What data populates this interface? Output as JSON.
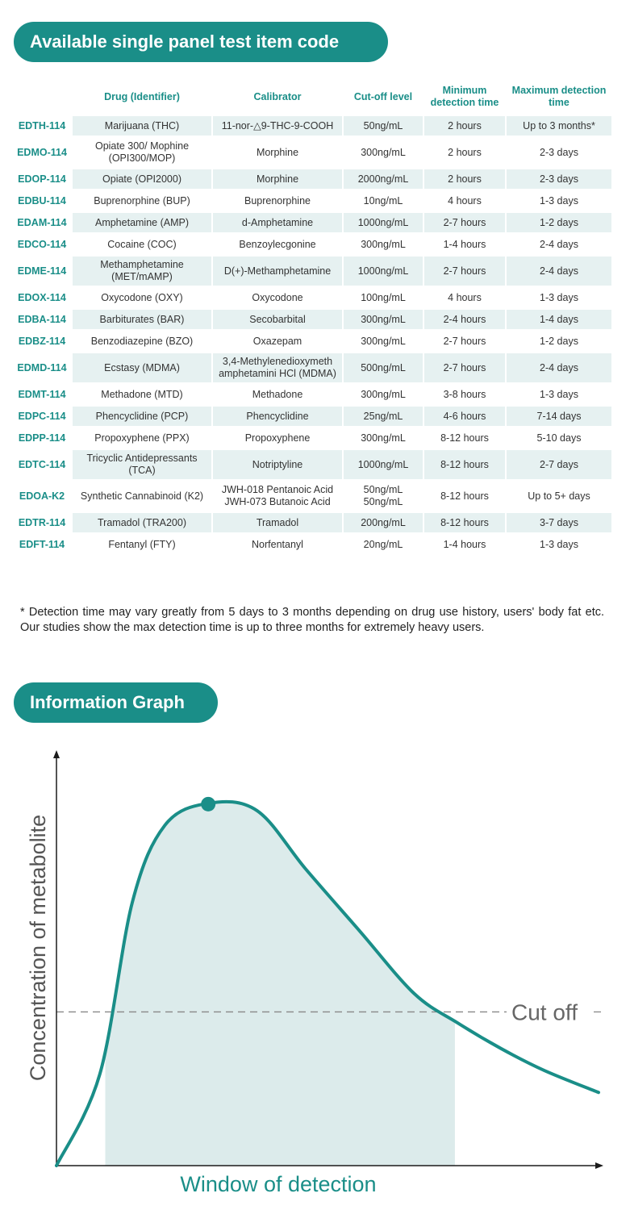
{
  "section1": {
    "title": "Available single panel test item code"
  },
  "table": {
    "headers": [
      "",
      "Drug (Identifier)",
      "Calibrator",
      "Cut-off level",
      "Minimum detection time",
      "Maximum detection time"
    ],
    "rows": [
      {
        "code": "EDTH-114",
        "drug": "Marijuana (THC)",
        "calibrator": "11-nor-△9-THC-9-COOH",
        "cutoff": "50ng/mL",
        "min": "2 hours",
        "max": "Up to 3 months*"
      },
      {
        "code": "EDMO-114",
        "drug": "Opiate 300/ Mophine (OPI300/MOP)",
        "calibrator": "Morphine",
        "cutoff": "300ng/mL",
        "min": "2 hours",
        "max": "2-3 days"
      },
      {
        "code": "EDOP-114",
        "drug": "Opiate (OPI2000)",
        "calibrator": "Morphine",
        "cutoff": "2000ng/mL",
        "min": "2 hours",
        "max": "2-3 days"
      },
      {
        "code": "EDBU-114",
        "drug": "Buprenorphine (BUP)",
        "calibrator": "Buprenorphine",
        "cutoff": "10ng/mL",
        "min": "4 hours",
        "max": "1-3 days"
      },
      {
        "code": "EDAM-114",
        "drug": "Amphetamine (AMP)",
        "calibrator": "d-Amphetamine",
        "cutoff": "1000ng/mL",
        "min": "2-7 hours",
        "max": "1-2 days"
      },
      {
        "code": "EDCO-114",
        "drug": "Cocaine (COC)",
        "calibrator": "Benzoylecgonine",
        "cutoff": "300ng/mL",
        "min": "1-4 hours",
        "max": "2-4 days"
      },
      {
        "code": "EDME-114",
        "drug": "Methamphetamine (MET/mAMP)",
        "calibrator": "D(+)-Methamphetamine",
        "cutoff": "1000ng/mL",
        "min": "2-7 hours",
        "max": "2-4 days"
      },
      {
        "code": "EDOX-114",
        "drug": "Oxycodone (OXY)",
        "calibrator": "Oxycodone",
        "cutoff": "100ng/mL",
        "min": "4 hours",
        "max": "1-3 days"
      },
      {
        "code": "EDBA-114",
        "drug": "Barbiturates (BAR)",
        "calibrator": "Secobarbital",
        "cutoff": "300ng/mL",
        "min": "2-4 hours",
        "max": "1-4 days"
      },
      {
        "code": "EDBZ-114",
        "drug": "Benzodiazepine (BZO)",
        "calibrator": "Oxazepam",
        "cutoff": "300ng/mL",
        "min": "2-7 hours",
        "max": "1-2 days"
      },
      {
        "code": "EDMD-114",
        "drug": "Ecstasy (MDMA)",
        "calibrator": "3,4-Methylenedioxymeth amphetamini HCl (MDMA)",
        "cutoff": "500ng/mL",
        "min": "2-7 hours",
        "max": "2-4 days"
      },
      {
        "code": "EDMT-114",
        "drug": "Methadone (MTD)",
        "calibrator": "Methadone",
        "cutoff": "300ng/mL",
        "min": "3-8 hours",
        "max": "1-3 days"
      },
      {
        "code": "EDPC-114",
        "drug": "Phencyclidine (PCP)",
        "calibrator": "Phencyclidine",
        "cutoff": "25ng/mL",
        "min": "4-6 hours",
        "max": "7-14 days"
      },
      {
        "code": "EDPP-114",
        "drug": "Propoxyphene (PPX)",
        "calibrator": "Propoxyphene",
        "cutoff": "300ng/mL",
        "min": "8-12 hours",
        "max": "5-10 days"
      },
      {
        "code": "EDTC-114",
        "drug": "Tricyclic Antidepressants (TCA)",
        "calibrator": "Notriptyline",
        "cutoff": "1000ng/mL",
        "min": "8-12 hours",
        "max": "2-7 days"
      },
      {
        "code": "EDOA-K2",
        "drug": "Synthetic Cannabinoid (K2)",
        "calibrator": "JWH-018 Pentanoic Acid JWH-073 Butanoic Acid",
        "cutoff": "50ng/mL 50ng/mL",
        "min": "8-12 hours",
        "max": "Up to 5+ days"
      },
      {
        "code": "EDTR-114",
        "drug": "Tramadol (TRA200)",
        "calibrator": "Tramadol",
        "cutoff": "200ng/mL",
        "min": "8-12 hours",
        "max": "3-7 days"
      },
      {
        "code": "EDFT-114",
        "drug": "Fentanyl (FTY)",
        "calibrator": "Norfentanyl",
        "cutoff": "20ng/mL",
        "min": "1-4 hours",
        "max": "1-3 days"
      }
    ]
  },
  "footnote": "* Detection time may vary greatly from 5 days to 3 months depending on drug use history, users' body fat etc. Our studies show the max detection time is up to three months for extremely heavy users.",
  "section2": {
    "title": "Information Graph"
  },
  "chart_data": {
    "type": "area",
    "title": "",
    "xlabel": "Window of detection",
    "ylabel": "Concentration of metabolite",
    "cutoff_label": "Cut off",
    "cutoff_level": 0.42,
    "x": [
      0,
      0.08,
      0.14,
      0.2,
      0.28,
      0.37,
      0.46,
      0.56,
      0.66,
      0.74,
      0.82,
      0.9,
      1.0
    ],
    "y": [
      0,
      0.25,
      0.72,
      0.93,
      0.99,
      0.97,
      0.81,
      0.64,
      0.47,
      0.39,
      0.32,
      0.26,
      0.2
    ],
    "peak_x": 0.28,
    "window_start_x": 0.09,
    "window_end_x": 0.735,
    "xlim": [
      0,
      1
    ],
    "ylim": [
      0,
      1.08
    ],
    "colors": {
      "accent": "#1a8e88",
      "fill": "#dcebeb",
      "axis": "#1b1b1b",
      "cutoff_line": "#888888"
    }
  }
}
